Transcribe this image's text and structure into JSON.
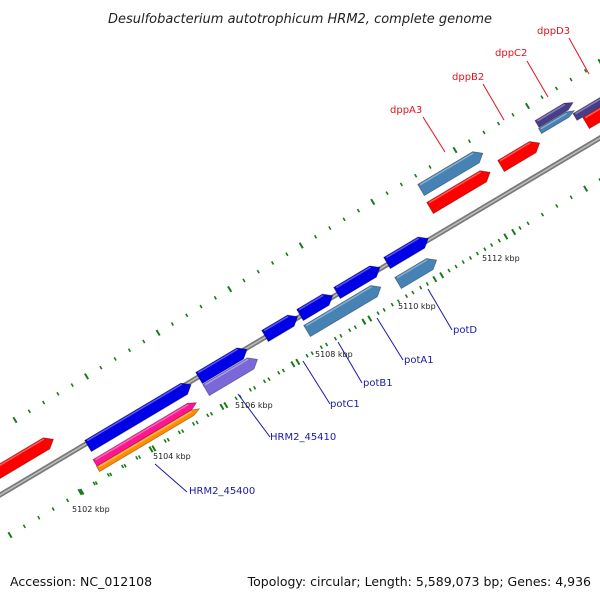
{
  "title": "Desulfobacterium autotrophicum HRM2, complete genome",
  "footer": {
    "accession": "Accession: NC_012108",
    "summary": "Topology: circular; Length: 5,589,073 bp; Genes: 4,936"
  },
  "ticks": [
    "5102 kbp",
    "5104 kbp",
    "5106 kbp",
    "5108 kbp",
    "5110 kbp",
    "5112 kbp"
  ],
  "labels_red": [
    "dppA3",
    "dppB2",
    "dppC2",
    "dppD3"
  ],
  "labels_blue": [
    "HRM2_45400",
    "HRM2_45410",
    "potC1",
    "potB1",
    "potA1",
    "potD"
  ],
  "colors": {
    "backbone": "#8c8c8c",
    "red_gene": "#ff0000",
    "blue_gene": "#0000e6",
    "steel_gene": "#4682b4",
    "lavender_gene": "#7b68d8",
    "pink_gene": "#ff1493",
    "orange_gene": "#ff8c00",
    "dark_purple_gene": "#483d8b",
    "tick_green": "#1a7a1a"
  }
}
